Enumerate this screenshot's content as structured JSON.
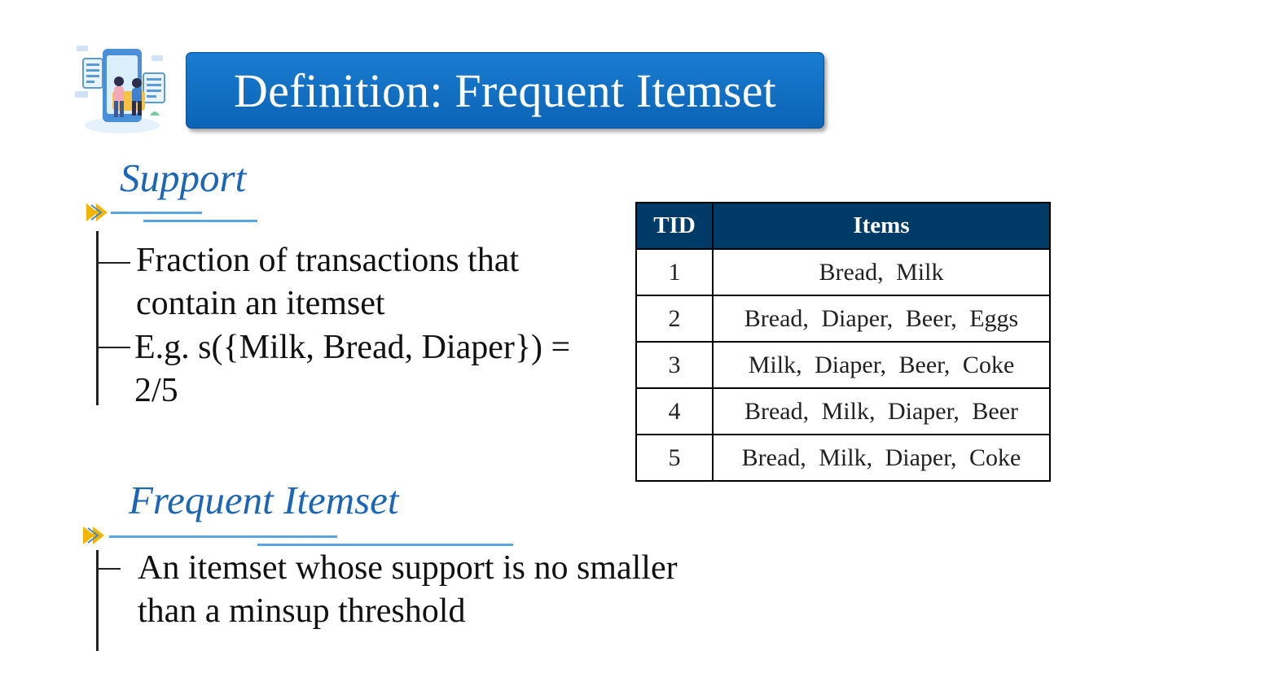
{
  "title": "Definition: Frequent Itemset",
  "support": {
    "heading": "Support",
    "bullets": [
      "Fraction of transactions that contain an itemset",
      "E.g. s({Milk, Bread, Diaper}) = 2/5"
    ]
  },
  "frequent": {
    "heading": "Frequent Itemset",
    "bullets": [
      "An itemset whose support is no smaller than a minsup threshold"
    ]
  },
  "table": {
    "headers": [
      "TID",
      "Items"
    ],
    "rows": [
      [
        "1",
        "Bread, Milk"
      ],
      [
        "2",
        "Bread, Diaper, Beer, Eggs"
      ],
      [
        "3",
        "Milk, Diaper, Beer, Coke"
      ],
      [
        "4",
        "Bread, Milk, Diaper, Beer"
      ],
      [
        "5",
        "Bread, Milk, Diaper, Coke"
      ]
    ]
  },
  "colors": {
    "title_banner": "#0b63b6",
    "heading": "#1c66b5",
    "table_header": "#003a66",
    "arrow": "#f2b600",
    "accent_line": "#5aa6e0"
  },
  "icons": [
    "mobile-data-illustration",
    "double-chevron-right-icon"
  ]
}
